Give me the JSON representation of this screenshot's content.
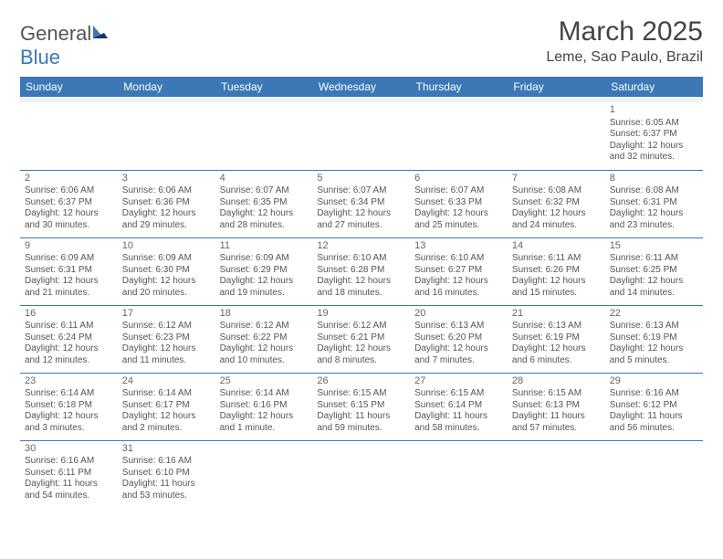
{
  "brand": {
    "part1": "General",
    "part2": "Blue",
    "accent_color": "#3b78b5",
    "text_color": "#555555"
  },
  "title": "March 2025",
  "location": "Leme, Sao Paulo, Brazil",
  "header_bg": "#3b78b5",
  "header_fg": "#ffffff",
  "border_color": "#3b78b5",
  "alt_row_bg": "#f2f2f2",
  "text_color": "#555555",
  "font_family": "Arial",
  "title_fontsize": 30,
  "location_fontsize": 16,
  "header_fontsize": 12,
  "cell_fontsize": 10,
  "days": [
    "Sunday",
    "Monday",
    "Tuesday",
    "Wednesday",
    "Thursday",
    "Friday",
    "Saturday"
  ],
  "weeks": [
    [
      null,
      null,
      null,
      null,
      null,
      null,
      {
        "n": "1",
        "sr": "Sunrise: 6:05 AM",
        "ss": "Sunset: 6:37 PM",
        "d1": "Daylight: 12 hours",
        "d2": "and 32 minutes."
      }
    ],
    [
      {
        "n": "2",
        "sr": "Sunrise: 6:06 AM",
        "ss": "Sunset: 6:37 PM",
        "d1": "Daylight: 12 hours",
        "d2": "and 30 minutes."
      },
      {
        "n": "3",
        "sr": "Sunrise: 6:06 AM",
        "ss": "Sunset: 6:36 PM",
        "d1": "Daylight: 12 hours",
        "d2": "and 29 minutes."
      },
      {
        "n": "4",
        "sr": "Sunrise: 6:07 AM",
        "ss": "Sunset: 6:35 PM",
        "d1": "Daylight: 12 hours",
        "d2": "and 28 minutes."
      },
      {
        "n": "5",
        "sr": "Sunrise: 6:07 AM",
        "ss": "Sunset: 6:34 PM",
        "d1": "Daylight: 12 hours",
        "d2": "and 27 minutes."
      },
      {
        "n": "6",
        "sr": "Sunrise: 6:07 AM",
        "ss": "Sunset: 6:33 PM",
        "d1": "Daylight: 12 hours",
        "d2": "and 25 minutes."
      },
      {
        "n": "7",
        "sr": "Sunrise: 6:08 AM",
        "ss": "Sunset: 6:32 PM",
        "d1": "Daylight: 12 hours",
        "d2": "and 24 minutes."
      },
      {
        "n": "8",
        "sr": "Sunrise: 6:08 AM",
        "ss": "Sunset: 6:31 PM",
        "d1": "Daylight: 12 hours",
        "d2": "and 23 minutes."
      }
    ],
    [
      {
        "n": "9",
        "sr": "Sunrise: 6:09 AM",
        "ss": "Sunset: 6:31 PM",
        "d1": "Daylight: 12 hours",
        "d2": "and 21 minutes."
      },
      {
        "n": "10",
        "sr": "Sunrise: 6:09 AM",
        "ss": "Sunset: 6:30 PM",
        "d1": "Daylight: 12 hours",
        "d2": "and 20 minutes."
      },
      {
        "n": "11",
        "sr": "Sunrise: 6:09 AM",
        "ss": "Sunset: 6:29 PM",
        "d1": "Daylight: 12 hours",
        "d2": "and 19 minutes."
      },
      {
        "n": "12",
        "sr": "Sunrise: 6:10 AM",
        "ss": "Sunset: 6:28 PM",
        "d1": "Daylight: 12 hours",
        "d2": "and 18 minutes."
      },
      {
        "n": "13",
        "sr": "Sunrise: 6:10 AM",
        "ss": "Sunset: 6:27 PM",
        "d1": "Daylight: 12 hours",
        "d2": "and 16 minutes."
      },
      {
        "n": "14",
        "sr": "Sunrise: 6:11 AM",
        "ss": "Sunset: 6:26 PM",
        "d1": "Daylight: 12 hours",
        "d2": "and 15 minutes."
      },
      {
        "n": "15",
        "sr": "Sunrise: 6:11 AM",
        "ss": "Sunset: 6:25 PM",
        "d1": "Daylight: 12 hours",
        "d2": "and 14 minutes."
      }
    ],
    [
      {
        "n": "16",
        "sr": "Sunrise: 6:11 AM",
        "ss": "Sunset: 6:24 PM",
        "d1": "Daylight: 12 hours",
        "d2": "and 12 minutes."
      },
      {
        "n": "17",
        "sr": "Sunrise: 6:12 AM",
        "ss": "Sunset: 6:23 PM",
        "d1": "Daylight: 12 hours",
        "d2": "and 11 minutes."
      },
      {
        "n": "18",
        "sr": "Sunrise: 6:12 AM",
        "ss": "Sunset: 6:22 PM",
        "d1": "Daylight: 12 hours",
        "d2": "and 10 minutes."
      },
      {
        "n": "19",
        "sr": "Sunrise: 6:12 AM",
        "ss": "Sunset: 6:21 PM",
        "d1": "Daylight: 12 hours",
        "d2": "and 8 minutes."
      },
      {
        "n": "20",
        "sr": "Sunrise: 6:13 AM",
        "ss": "Sunset: 6:20 PM",
        "d1": "Daylight: 12 hours",
        "d2": "and 7 minutes."
      },
      {
        "n": "21",
        "sr": "Sunrise: 6:13 AM",
        "ss": "Sunset: 6:19 PM",
        "d1": "Daylight: 12 hours",
        "d2": "and 6 minutes."
      },
      {
        "n": "22",
        "sr": "Sunrise: 6:13 AM",
        "ss": "Sunset: 6:19 PM",
        "d1": "Daylight: 12 hours",
        "d2": "and 5 minutes."
      }
    ],
    [
      {
        "n": "23",
        "sr": "Sunrise: 6:14 AM",
        "ss": "Sunset: 6:18 PM",
        "d1": "Daylight: 12 hours",
        "d2": "and 3 minutes."
      },
      {
        "n": "24",
        "sr": "Sunrise: 6:14 AM",
        "ss": "Sunset: 6:17 PM",
        "d1": "Daylight: 12 hours",
        "d2": "and 2 minutes."
      },
      {
        "n": "25",
        "sr": "Sunrise: 6:14 AM",
        "ss": "Sunset: 6:16 PM",
        "d1": "Daylight: 12 hours",
        "d2": "and 1 minute."
      },
      {
        "n": "26",
        "sr": "Sunrise: 6:15 AM",
        "ss": "Sunset: 6:15 PM",
        "d1": "Daylight: 11 hours",
        "d2": "and 59 minutes."
      },
      {
        "n": "27",
        "sr": "Sunrise: 6:15 AM",
        "ss": "Sunset: 6:14 PM",
        "d1": "Daylight: 11 hours",
        "d2": "and 58 minutes."
      },
      {
        "n": "28",
        "sr": "Sunrise: 6:15 AM",
        "ss": "Sunset: 6:13 PM",
        "d1": "Daylight: 11 hours",
        "d2": "and 57 minutes."
      },
      {
        "n": "29",
        "sr": "Sunrise: 6:16 AM",
        "ss": "Sunset: 6:12 PM",
        "d1": "Daylight: 11 hours",
        "d2": "and 56 minutes."
      }
    ],
    [
      {
        "n": "30",
        "sr": "Sunrise: 6:16 AM",
        "ss": "Sunset: 6:11 PM",
        "d1": "Daylight: 11 hours",
        "d2": "and 54 minutes."
      },
      {
        "n": "31",
        "sr": "Sunrise: 6:16 AM",
        "ss": "Sunset: 6:10 PM",
        "d1": "Daylight: 11 hours",
        "d2": "and 53 minutes."
      },
      null,
      null,
      null,
      null,
      null
    ]
  ]
}
